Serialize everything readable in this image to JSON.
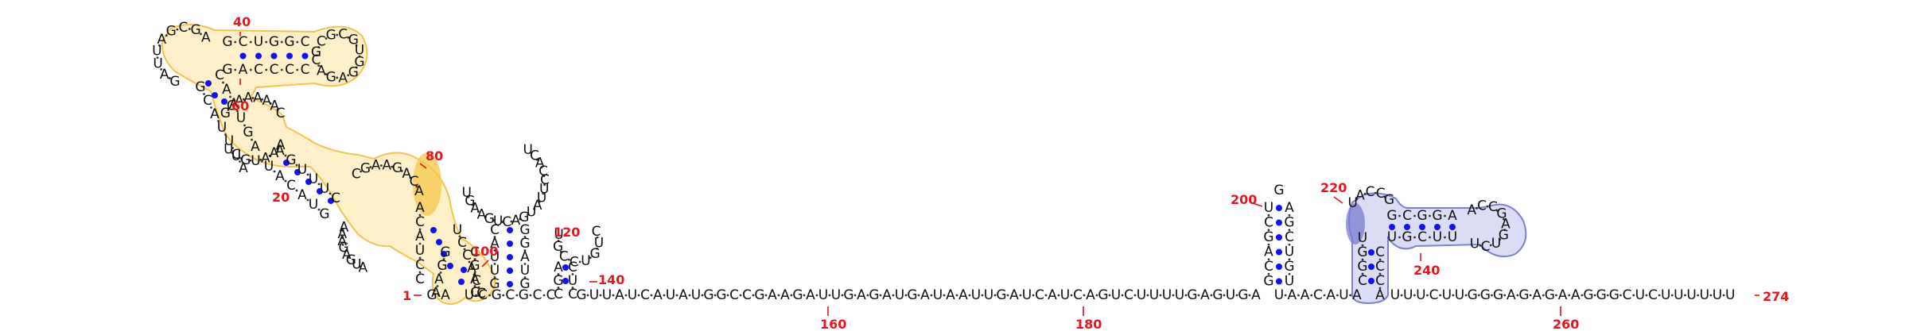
{
  "colors": {
    "pair_dot": "#1010ff",
    "number": "#e8141b",
    "tick": "#e8141b",
    "backbone": "#444444",
    "hl_yellow_fill": "#fde9b0",
    "hl_yellow_stroke": "#f2c44e",
    "hl_blue_fill": "#cfd0f2",
    "hl_blue_stroke": "#7d80d6",
    "hl_yellow_strong": "#f7c74a",
    "hl_blue_strong": "#7a7ccd"
  },
  "structure": {
    "backbone_a": "UCGCGCCGUUAUCAUAUGGCCGAAGAUUGAGAUGAUAAUUGAUCAUCAGUCUUUUGAGUGA",
    "backbone_b": "UAACAUAUUUCUUGGGAGAGAAGGGCUCUUUUUU",
    "helix_left_5p": "GCUGGC",
    "helix_left_3p": "GACCCC",
    "loop_left_top": "GCGAUUAG",
    "loop_left_right": "GCCGUGGAGAC",
    "mid_left": "UGGCAAUG",
    "mid_left_2": "AACAAGUUUC",
    "mid_right": "CUACAUGA",
    "bulge_80": "CGAAGACA",
    "mid_stem_right": "UCCACC",
    "stem_small": "GGAACGA",
    "loop_100": "UGAAGUCAGUAUUCCACU",
    "stem_120": "CAUCAGGAU",
    "loop_120": "UGCCUGUC",
    "hairpin_200_5p": "GACGCU",
    "hairpin_200_3p": "ACGCUGU",
    "hairpin_200_loop": "G",
    "hp240_stem_5p": "GCGGA",
    "hp240_stem_3p": "UGCUU",
    "hp240_loop": "ACCGAGUCU",
    "hp240_inner": "UGGUGCCA"
  },
  "numbers": {
    "n1": "1",
    "n20": "20",
    "n40": "40",
    "n60": "60",
    "n80": "80",
    "n100": "100",
    "n120": "120",
    "n140": "140",
    "n160": "160",
    "n180": "180",
    "n200": "200",
    "n220": "220",
    "n240": "240",
    "n260": "260",
    "n274": "274"
  }
}
